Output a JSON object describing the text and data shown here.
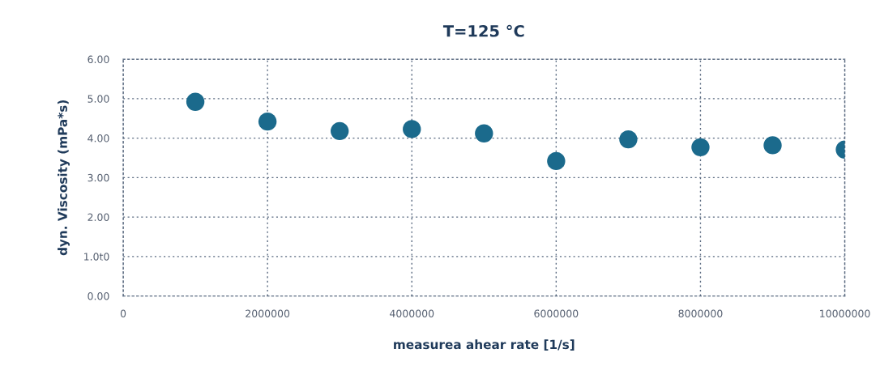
{
  "chart_data": {
    "type": "scatter",
    "title": "T=125 °C",
    "xlabel": "measurea ahear rate [1/s]",
    "ylabel": "dyn. Viscosity (mPa*s)",
    "x": [
      1000000,
      2000000,
      3000000,
      4000000,
      5000000,
      6000000,
      7000000,
      8000000,
      9000000,
      10000000
    ],
    "series": [
      {
        "color": "#1b6a8c",
        "values": [
          4.92,
          4.42,
          4.18,
          4.23,
          4.12,
          3.42,
          3.97,
          3.77,
          3.82,
          3.71
        ]
      }
    ],
    "xlim": [
      0,
      10000000
    ],
    "xticks": [
      0,
      2000000,
      4000000,
      6000000,
      8000000,
      10000000
    ],
    "ylim": [
      0,
      6
    ],
    "yticks": [
      {
        "value": 0,
        "label": "0.00"
      },
      {
        "value": 1,
        "label": "1.0t0"
      },
      {
        "value": 2,
        "label": "2.00"
      },
      {
        "value": 3,
        "label": "3.00"
      },
      {
        "value": 4,
        "label": "4.00"
      },
      {
        "value": 5,
        "label": "5.00"
      },
      {
        "value": 6,
        "label": "6.00"
      }
    ],
    "grid": true,
    "marker": "circle"
  }
}
